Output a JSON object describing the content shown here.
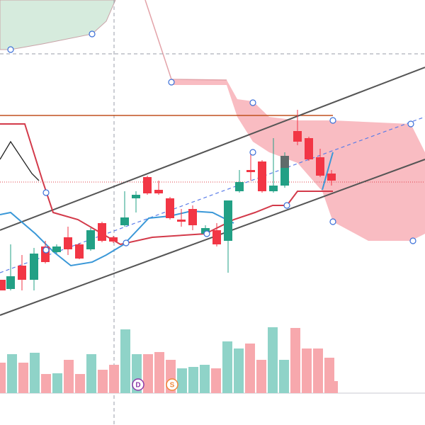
{
  "markers": [
    {
      "label": "D"
    },
    {
      "label": "S"
    }
  ]
}
